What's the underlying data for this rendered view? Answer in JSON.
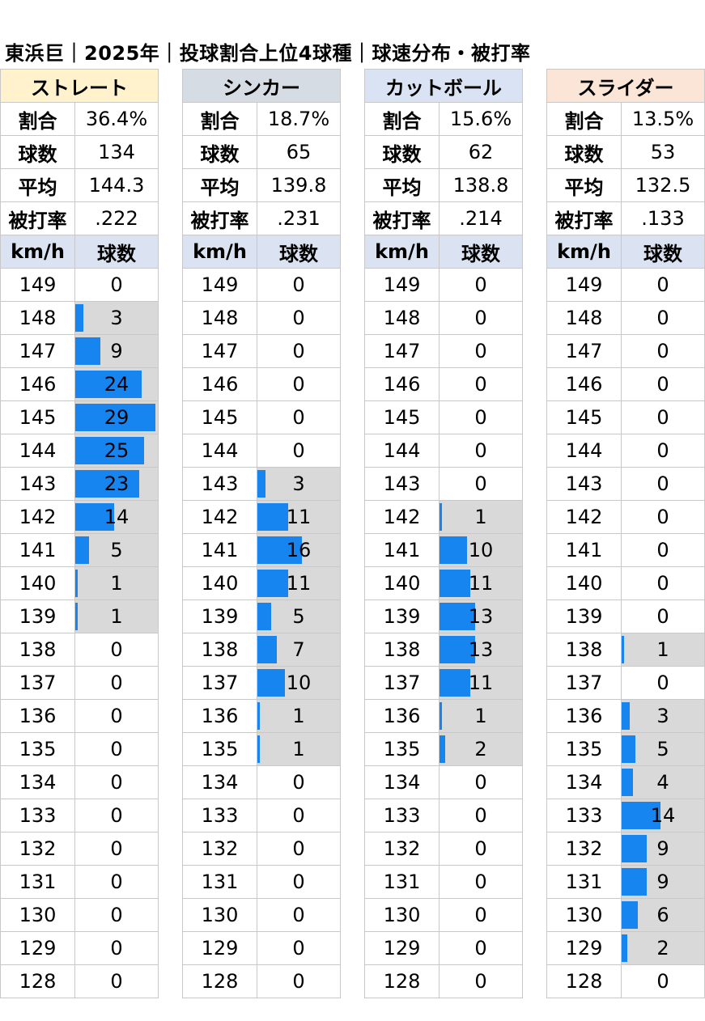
{
  "title": "東浜巨｜2025年｜投球割合上位4球種｜球速分布・被打率",
  "labels": {
    "ratio": "割合",
    "count": "球数",
    "avg": "平均",
    "ba": "被打率",
    "kmh": "km/h",
    "pitches": "球数"
  },
  "speeds": [
    "149",
    "148",
    "147",
    "146",
    "145",
    "144",
    "143",
    "142",
    "141",
    "140",
    "139",
    "138",
    "137",
    "136",
    "135",
    "134",
    "133",
    "132",
    "131",
    "130",
    "129",
    "128"
  ],
  "pitch_types": [
    {
      "name": "ストレート",
      "header_color": "#fff2cc",
      "ratio": "36.4%",
      "count": "134",
      "avg": "144.3",
      "ba": ".222",
      "max": 29,
      "counts": [
        0,
        3,
        9,
        24,
        29,
        25,
        23,
        14,
        5,
        1,
        1,
        0,
        0,
        0,
        0,
        0,
        0,
        0,
        0,
        0,
        0,
        0
      ]
    },
    {
      "name": "シンカー",
      "header_color": "#d6dce4",
      "ratio": "18.7%",
      "count": "65",
      "avg": "139.8",
      "ba": ".231",
      "max": 29,
      "counts": [
        0,
        0,
        0,
        0,
        0,
        0,
        3,
        11,
        16,
        11,
        5,
        7,
        10,
        1,
        1,
        0,
        0,
        0,
        0,
        0,
        0,
        0
      ]
    },
    {
      "name": "カットボール",
      "header_color": "#dae3f3",
      "ratio": "15.6%",
      "count": "62",
      "avg": "138.8",
      "ba": ".214",
      "max": 29,
      "counts": [
        0,
        0,
        0,
        0,
        0,
        0,
        0,
        1,
        10,
        11,
        13,
        13,
        11,
        1,
        2,
        0,
        0,
        0,
        0,
        0,
        0,
        0
      ]
    },
    {
      "name": "スライダー",
      "header_color": "#fbe5d6",
      "ratio": "13.5%",
      "count": "53",
      "avg": "132.5",
      "ba": ".133",
      "max": 29,
      "counts": [
        0,
        0,
        0,
        0,
        0,
        0,
        0,
        0,
        0,
        0,
        0,
        1,
        0,
        3,
        5,
        4,
        14,
        9,
        9,
        6,
        2,
        0
      ]
    }
  ]
}
